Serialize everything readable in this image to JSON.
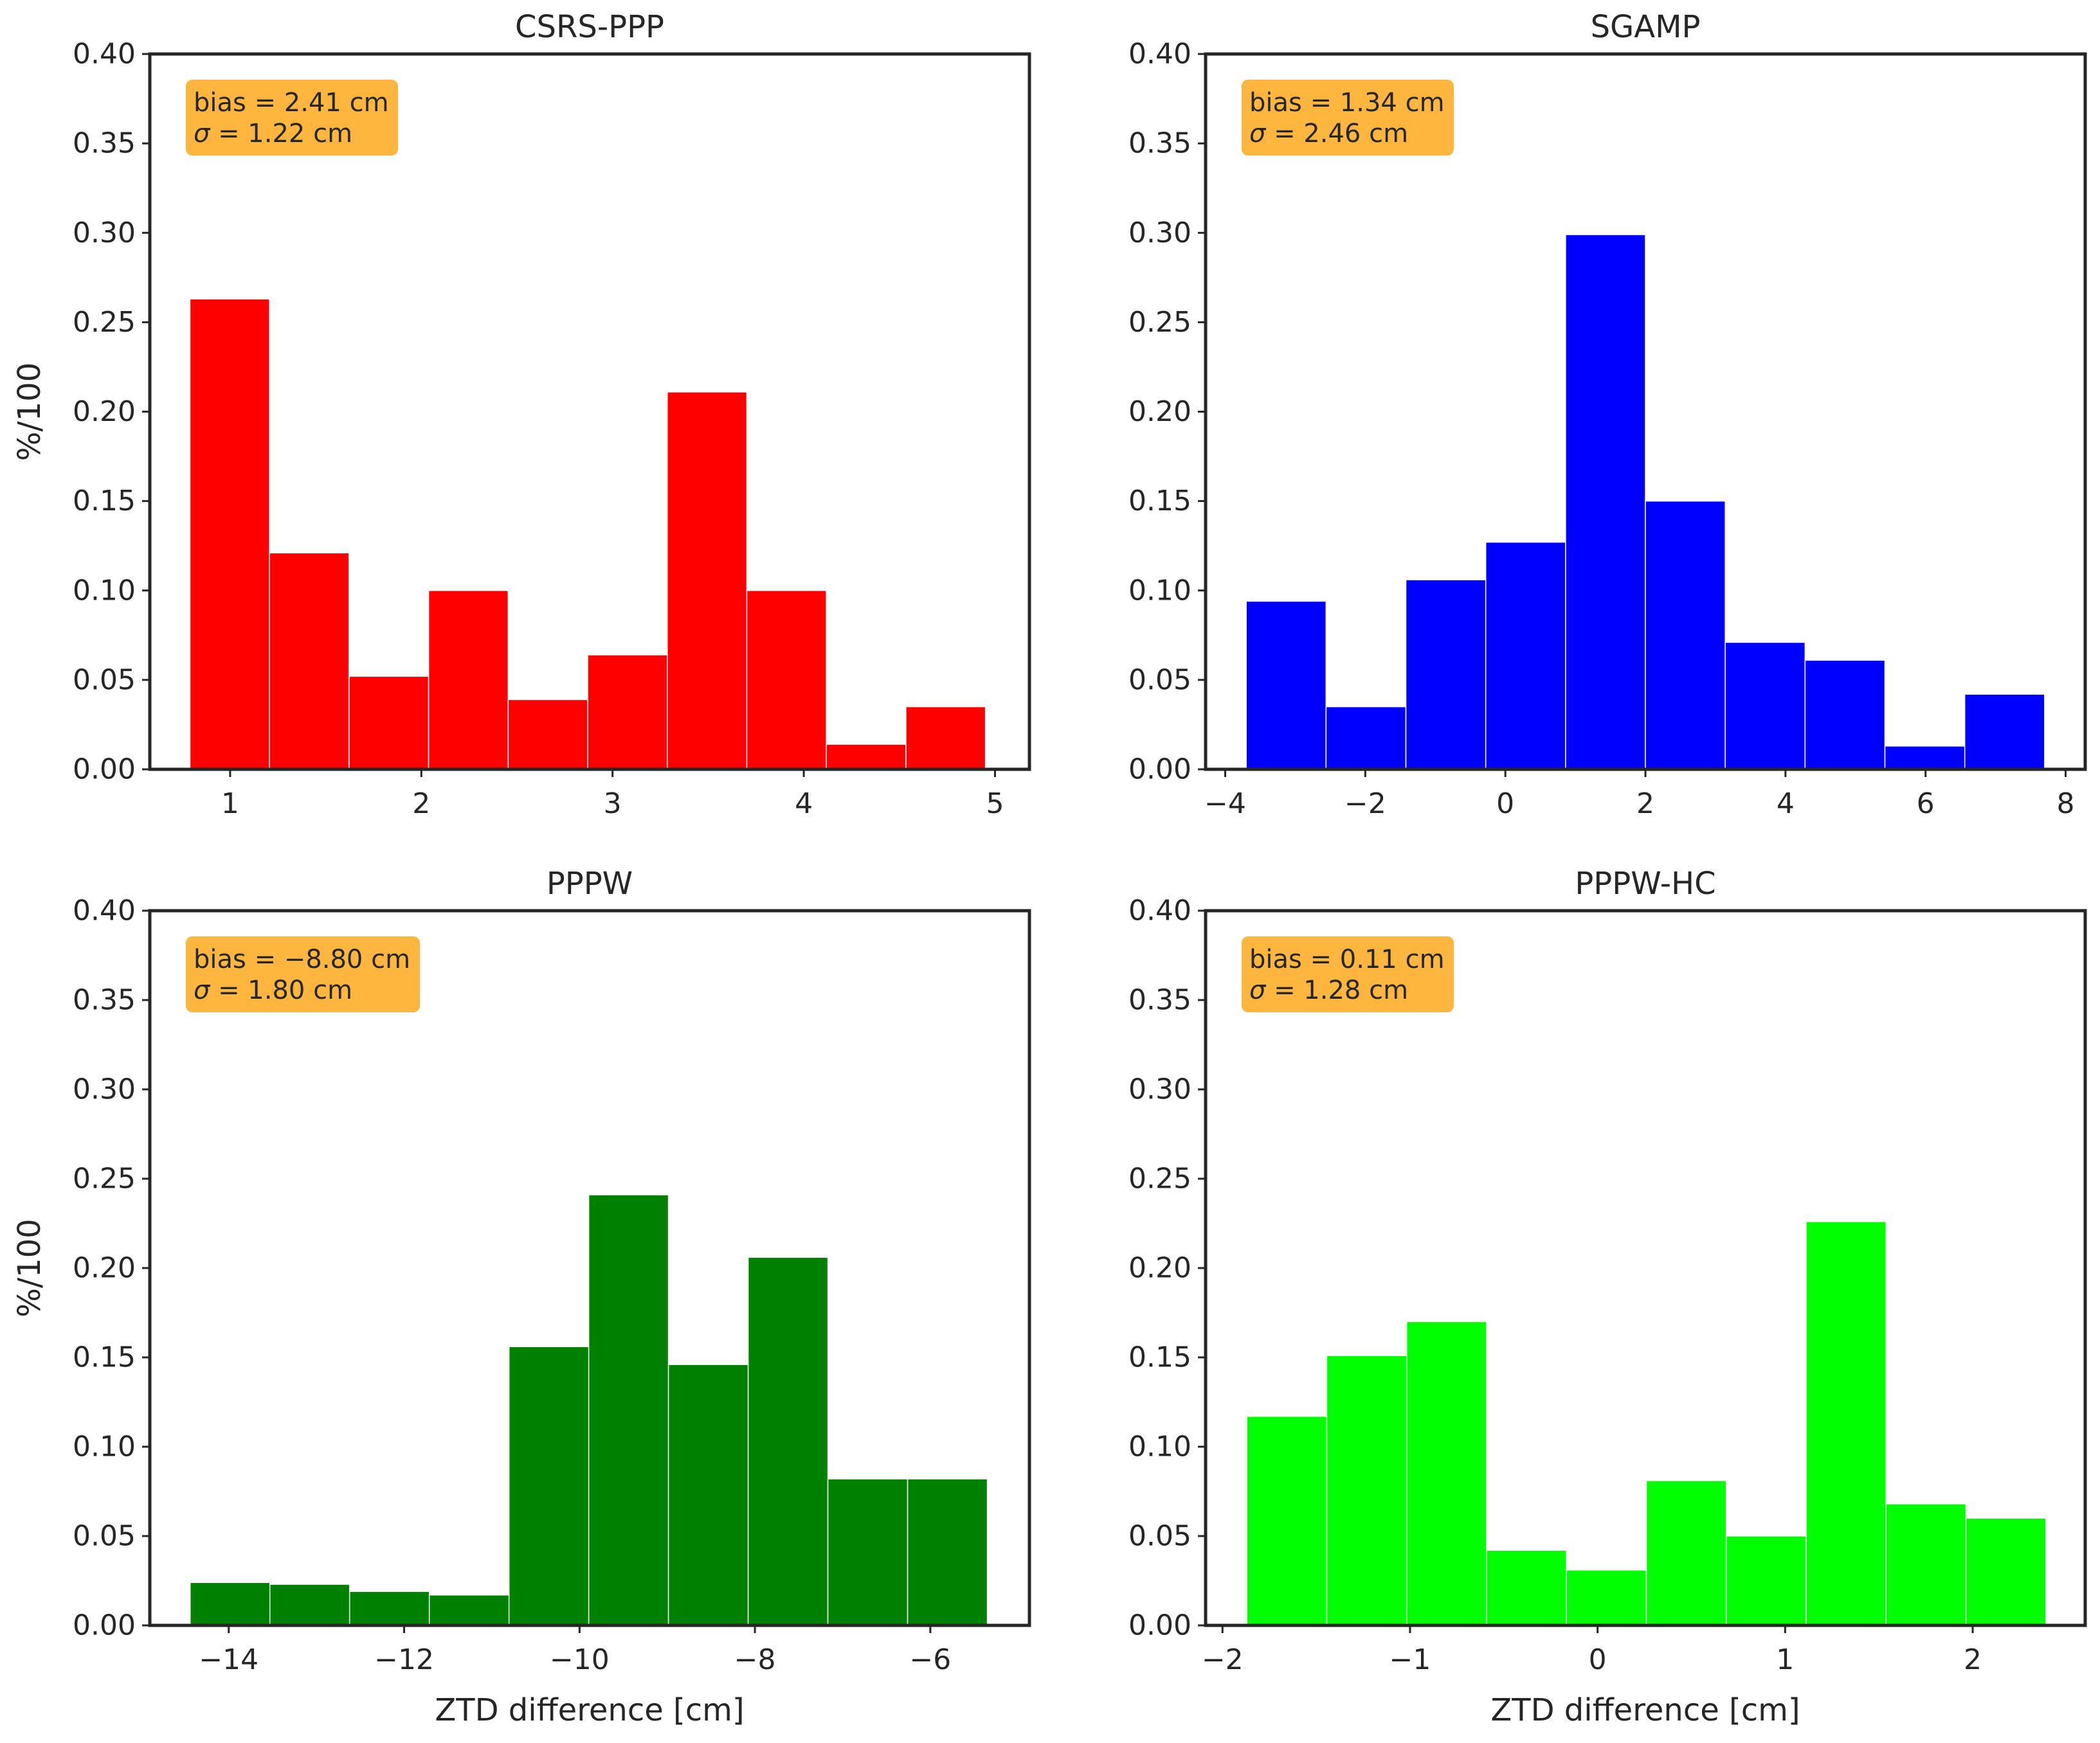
{
  "chart_data": [
    {
      "type": "bar",
      "title": "CSRS-PPP",
      "color": "#ff0000",
      "ylabel": "%/100",
      "xlabel": "",
      "ylim": [
        0,
        0.4
      ],
      "xlim": [
        0.58,
        5.18
      ],
      "yticks": [
        "0.00",
        "0.05",
        "0.10",
        "0.15",
        "0.20",
        "0.25",
        "0.30",
        "0.35",
        "0.40"
      ],
      "xticks": [
        {
          "value": 1,
          "label": "1"
        },
        {
          "value": 2,
          "label": "2"
        },
        {
          "value": 3,
          "label": "3"
        },
        {
          "value": 4,
          "label": "4"
        },
        {
          "value": 5,
          "label": "5"
        }
      ],
      "bins": {
        "start": 0.79,
        "end": 4.95
      },
      "values": [
        0.263,
        0.121,
        0.052,
        0.1,
        0.039,
        0.064,
        0.211,
        0.1,
        0.014,
        0.035
      ],
      "stats": {
        "bias": "bias = 2.41 cm",
        "sigma_symbol": "σ",
        "sigma_rest": " = 1.22 cm"
      }
    },
    {
      "type": "bar",
      "title": "SGAMP",
      "color": "#0000ff",
      "ylabel": "",
      "xlabel": "",
      "ylim": [
        0,
        0.4
      ],
      "xlim": [
        -4.28,
        8.28
      ],
      "yticks": [
        "0.00",
        "0.05",
        "0.10",
        "0.15",
        "0.20",
        "0.25",
        "0.30",
        "0.35",
        "0.40"
      ],
      "xticks": [
        {
          "value": -4,
          "label": "−4"
        },
        {
          "value": -2,
          "label": "−2"
        },
        {
          "value": 0,
          "label": "0"
        },
        {
          "value": 2,
          "label": "2"
        },
        {
          "value": 4,
          "label": "4"
        },
        {
          "value": 6,
          "label": "6"
        },
        {
          "value": 8,
          "label": "8"
        }
      ],
      "bins": {
        "start": -3.7,
        "end": 7.7
      },
      "values": [
        0.094,
        0.035,
        0.106,
        0.127,
        0.299,
        0.15,
        0.071,
        0.061,
        0.013,
        0.042
      ],
      "stats": {
        "bias": "bias = 1.34 cm",
        "sigma_symbol": "σ",
        "sigma_rest": " = 2.46 cm"
      }
    },
    {
      "type": "bar",
      "title": "PPPW",
      "color": "#008000",
      "ylabel": "%/100",
      "xlabel": "ZTD difference [cm]",
      "ylim": [
        0,
        0.4
      ],
      "xlim": [
        -14.9,
        -4.87
      ],
      "yticks": [
        "0.00",
        "0.05",
        "0.10",
        "0.15",
        "0.20",
        "0.25",
        "0.30",
        "0.35",
        "0.40"
      ],
      "xticks": [
        {
          "value": -14,
          "label": "−14"
        },
        {
          "value": -12,
          "label": "−12"
        },
        {
          "value": -10,
          "label": "−10"
        },
        {
          "value": -8,
          "label": "−8"
        },
        {
          "value": -6,
          "label": "−6"
        }
      ],
      "bins": {
        "start": -14.44,
        "end": -5.35
      },
      "values": [
        0.024,
        0.023,
        0.019,
        0.017,
        0.156,
        0.241,
        0.146,
        0.206,
        0.082,
        0.082
      ],
      "stats": {
        "bias": "bias = −8.80 cm",
        "sigma_symbol": "σ",
        "sigma_rest": " = 1.80 cm"
      }
    },
    {
      "type": "bar",
      "title": "PPPW-HC",
      "color": "#00ff00",
      "ylabel": "",
      "xlabel": "ZTD difference [cm]",
      "ylim": [
        0,
        0.4
      ],
      "xlim": [
        -2.09,
        2.6
      ],
      "yticks": [
        "0.00",
        "0.05",
        "0.10",
        "0.15",
        "0.20",
        "0.25",
        "0.30",
        "0.35",
        "0.40"
      ],
      "xticks": [
        {
          "value": -2,
          "label": "−2"
        },
        {
          "value": -1,
          "label": "−1"
        },
        {
          "value": 0,
          "label": "0"
        },
        {
          "value": 1,
          "label": "1"
        },
        {
          "value": 2,
          "label": "2"
        }
      ],
      "bins": {
        "start": -1.87,
        "end": 2.39
      },
      "values": [
        0.117,
        0.151,
        0.17,
        0.042,
        0.031,
        0.081,
        0.05,
        0.226,
        0.068,
        0.06
      ],
      "stats": {
        "bias": "bias = 0.11 cm",
        "sigma_symbol": "σ",
        "sigma_rest": " = 1.28 cm"
      }
    }
  ],
  "colors": {
    "text": "#262626",
    "stats_box": "#ffb63f",
    "frame": "#262626"
  }
}
